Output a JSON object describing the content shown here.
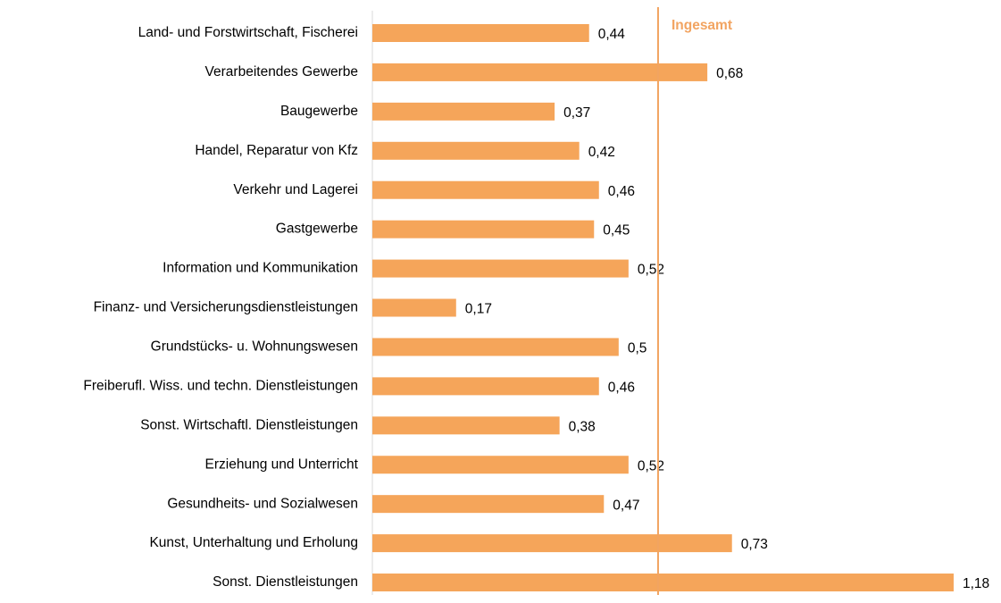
{
  "chart_data": {
    "type": "hbar",
    "categories": [
      "Land- und Forstwirtschaft, Fischerei",
      "Verarbeitendes Gewerbe",
      "Baugewerbe",
      "Handel, Reparatur von Kfz",
      "Verkehr und Lagerei",
      "Gastgewerbe",
      "Information und Kommunikation",
      "Finanz- und Versicherungsdienstleistungen",
      "Grundstücks- u. Wohnungswesen",
      "Freiberufl. Wiss. und techn. Dienstleistungen",
      "Sonst. Wirtschaftl. Dienstleistungen",
      "Erziehung und Unterricht",
      "Gesundheits- und Sozialwesen",
      "Kunst, Unterhaltung und Erholung",
      "Sonst. Dienstleistungen"
    ],
    "values": [
      0.44,
      0.68,
      0.37,
      0.42,
      0.46,
      0.45,
      0.52,
      0.17,
      0.5,
      0.46,
      0.38,
      0.52,
      0.47,
      0.73,
      1.18
    ],
    "value_labels": [
      "0,44",
      "0,68",
      "0,37",
      "0,42",
      "0,46",
      "0,45",
      "0,52",
      "0,17",
      "0,5",
      "0,46",
      "0,38",
      "0,52",
      "0,47",
      "0,73",
      "1,18"
    ],
    "color": "#f5a55a",
    "xlim": [
      0,
      1.2
    ],
    "reference_line": {
      "value": 0.58,
      "label": "Ingesamt",
      "color": "#f2a461"
    }
  }
}
